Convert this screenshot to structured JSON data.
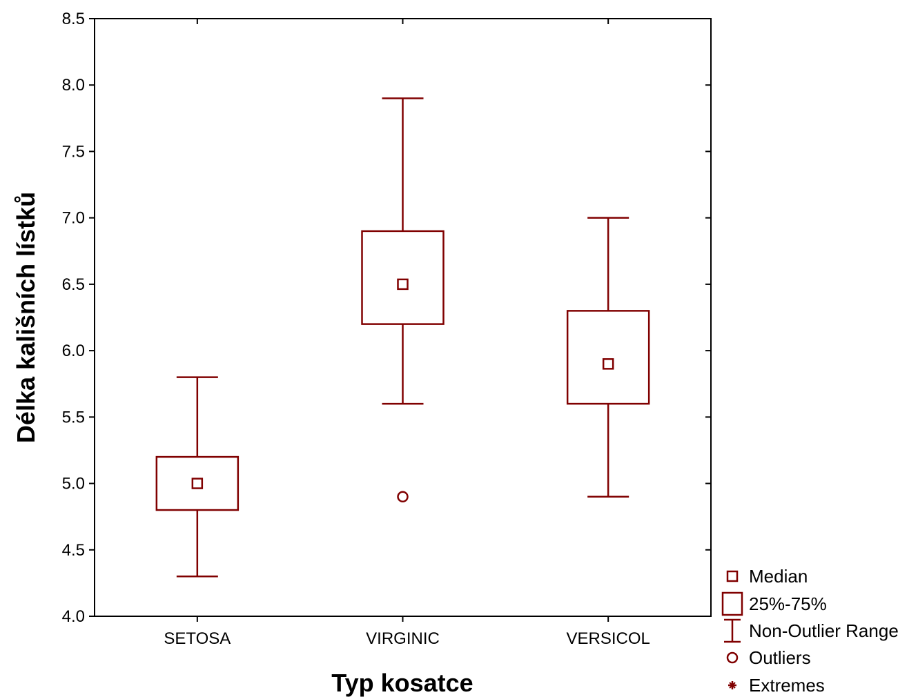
{
  "chart_data": {
    "type": "boxplot",
    "xlabel": "Typ kosatce",
    "ylabel": "Délka kališních lístků",
    "ylim": [
      4.0,
      8.5
    ],
    "yticks": [
      "4.0",
      "4.5",
      "5.0",
      "5.5",
      "6.0",
      "6.5",
      "7.0",
      "7.5",
      "8.0",
      "8.5"
    ],
    "categories": [
      "SETOSA",
      "VIRGINIC",
      "VERSICOL"
    ],
    "boxes": [
      {
        "category": "SETOSA",
        "median": 5.0,
        "q1": 4.8,
        "q3": 5.2,
        "whisker_low": 4.3,
        "whisker_high": 5.8,
        "outliers": [],
        "extremes": []
      },
      {
        "category": "VIRGINIC",
        "median": 6.5,
        "q1": 6.2,
        "q3": 6.9,
        "whisker_low": 5.6,
        "whisker_high": 7.9,
        "outliers": [
          4.9
        ],
        "extremes": []
      },
      {
        "category": "VERSICOL",
        "median": 5.9,
        "q1": 5.6,
        "q3": 6.3,
        "whisker_low": 4.9,
        "whisker_high": 7.0,
        "outliers": [],
        "extremes": []
      }
    ],
    "legend": {
      "placement": "bottom-right",
      "items": [
        {
          "symbol": "median",
          "label": "Median"
        },
        {
          "symbol": "box",
          "label": "25%-75%"
        },
        {
          "symbol": "range",
          "label": "Non-Outlier Range"
        },
        {
          "symbol": "outlier",
          "label": "Outliers"
        },
        {
          "symbol": "extreme",
          "label": "Extremes"
        }
      ]
    },
    "colors": {
      "series": "#800000",
      "axis": "#000000"
    }
  }
}
